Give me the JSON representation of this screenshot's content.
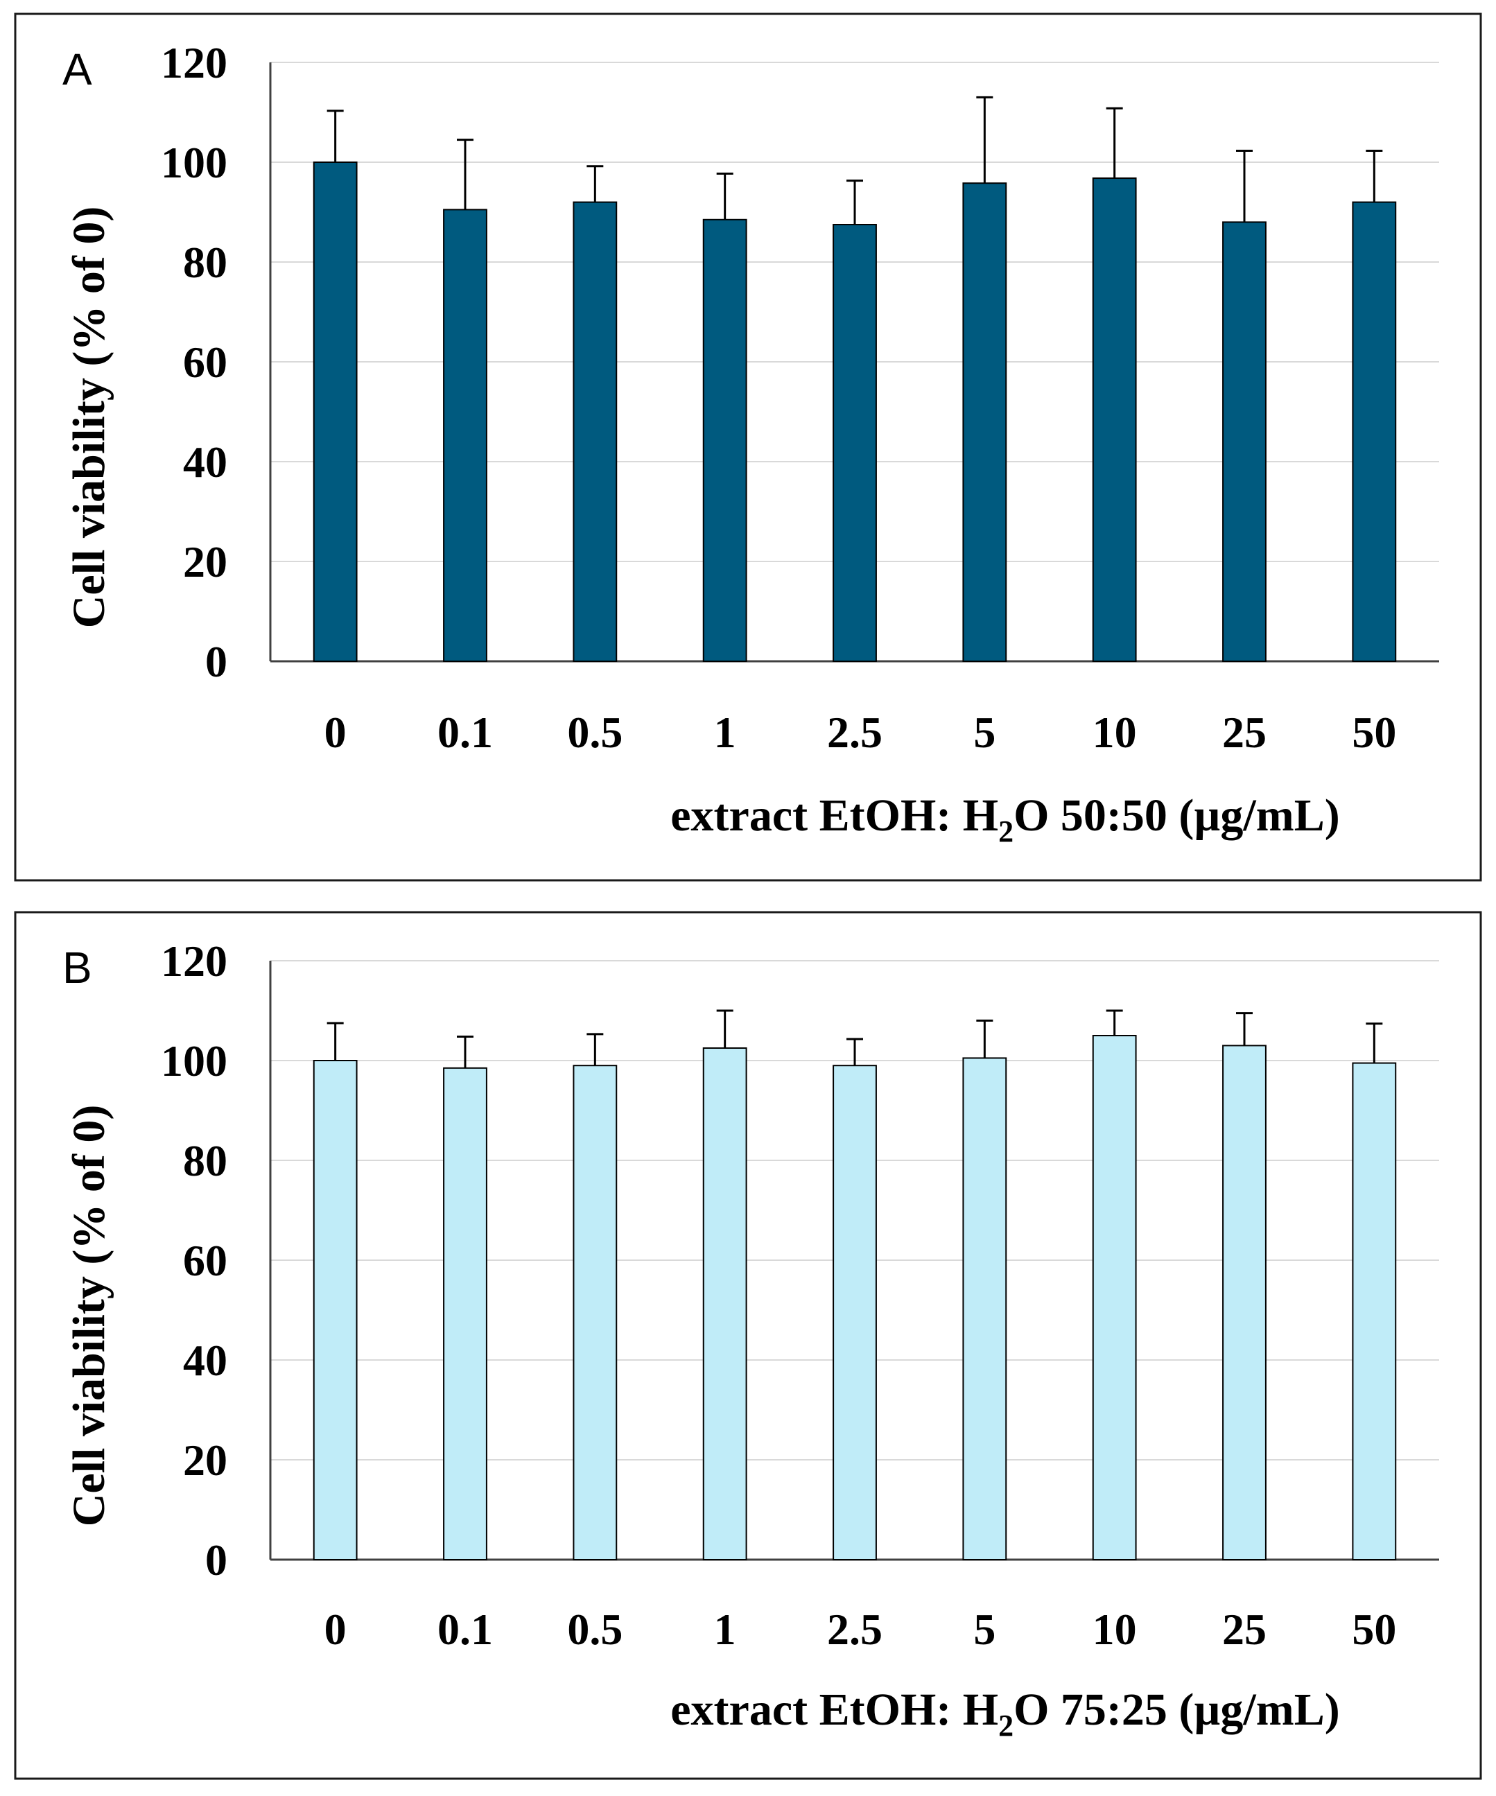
{
  "chart_data": [
    {
      "panel": "A",
      "type": "bar",
      "categories": [
        "0",
        "0.1",
        "0.5",
        "1",
        "2.5",
        "5",
        "10",
        "25",
        "50"
      ],
      "values": [
        100,
        90.5,
        92,
        88.5,
        87.5,
        95.8,
        96.8,
        88,
        92
      ],
      "errors": [
        10.3,
        14,
        7.2,
        9.2,
        8.8,
        17.2,
        14,
        14.3,
        10.3
      ],
      "bar_color": "#005a7f",
      "title": "",
      "ylabel": "Cell viability (% of 0)",
      "xlabel_prefix": "extract EtOH: H",
      "xlabel_sub": "2",
      "xlabel_suffix": "O 50:50 (µg/mL)",
      "yticks": [
        "0",
        "20",
        "40",
        "60",
        "80",
        "100",
        "120"
      ],
      "ylim": [
        0,
        120
      ],
      "grid": true
    },
    {
      "panel": "B",
      "type": "bar",
      "categories": [
        "0",
        "0.1",
        "0.5",
        "1",
        "2.5",
        "5",
        "10",
        "25",
        "50"
      ],
      "values": [
        100,
        98.5,
        99,
        102.5,
        99,
        100.5,
        105,
        103,
        99.5
      ],
      "errors": [
        7.5,
        6.3,
        6.3,
        7.5,
        5.3,
        7.5,
        5,
        6.5,
        7.9
      ],
      "bar_color": "#c0ecf8",
      "title": "",
      "ylabel": "Cell viability (% of 0)",
      "xlabel_prefix": "extract EtOH: H",
      "xlabel_sub": "2",
      "xlabel_suffix": "O 75:25 (µg/mL)",
      "yticks": [
        "0",
        "20",
        "40",
        "60",
        "80",
        "100",
        "120"
      ],
      "ylim": [
        0,
        120
      ],
      "grid": true
    }
  ]
}
